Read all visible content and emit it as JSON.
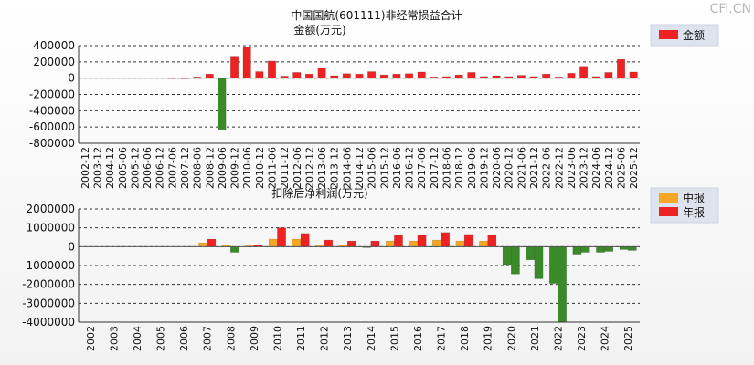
{
  "watermark": "CFi.CN",
  "chart_data": [
    {
      "type": "bar",
      "title": "中国国航(601111)非经常损益合计",
      "subtitle": "金额(万元)",
      "ylabel": "",
      "xlabel": "",
      "ylim": [
        -800000,
        400000
      ],
      "yticks": [
        "400000",
        "200000",
        "0",
        "-200000",
        "-400000",
        "-600000",
        "-800000"
      ],
      "grid": true,
      "legend_position": "top-right",
      "categories": [
        "2002-12",
        "2003-12",
        "2004-12",
        "2005-06",
        "2005-12",
        "2006-06",
        "2006-12",
        "2007-06",
        "2007-12",
        "2008-06",
        "2008-12",
        "2009-06",
        "2009-12",
        "2010-06",
        "2010-12",
        "2011-06",
        "2011-12",
        "2012-06",
        "2012-12",
        "2013-06",
        "2013-12",
        "2014-06",
        "2014-12",
        "2015-06",
        "2015-12",
        "2016-06",
        "2016-12",
        "2017-06",
        "2017-12",
        "2018-06",
        "2018-12",
        "2019-06",
        "2019-12",
        "2020-06",
        "2020-12",
        "2021-06",
        "2021-12",
        "2022-06",
        "2022-12",
        "2023-06",
        "2023-12",
        "2024-06",
        "2024-12",
        "2025-06",
        "2025-12"
      ],
      "series": [
        {
          "name": "金额",
          "color": "#ee2222",
          "negative_color": "#3a8a2a",
          "values": [
            0,
            0,
            0,
            0,
            0,
            0,
            0,
            5000,
            3000,
            15000,
            50000,
            -630000,
            270000,
            380000,
            80000,
            210000,
            25000,
            70000,
            50000,
            130000,
            30000,
            55000,
            50000,
            80000,
            40000,
            50000,
            55000,
            75000,
            15000,
            20000,
            40000,
            70000,
            20000,
            30000,
            20000,
            35000,
            20000,
            50000,
            15000,
            60000,
            145000,
            20000,
            70000,
            230000,
            75000
          ]
        }
      ]
    },
    {
      "type": "bar",
      "title": "扣除后净利润(万元)",
      "subtitle": "",
      "ylabel": "",
      "xlabel": "",
      "ylim": [
        -4000000,
        2000000
      ],
      "yticks": [
        "2000000",
        "1000000",
        "0",
        "-1000000",
        "-2000000",
        "-3000000",
        "-4000000"
      ],
      "grid": true,
      "legend_position": "top-right",
      "categories": [
        "2002",
        "2003",
        "2004",
        "2005",
        "2006",
        "2007",
        "2008",
        "2009",
        "2010",
        "2011",
        "2012",
        "2013",
        "2014",
        "2015",
        "2016",
        "2017",
        "2018",
        "2019",
        "2020",
        "2021",
        "2022",
        "2023",
        "2024",
        "2025"
      ],
      "series": [
        {
          "name": "中报",
          "color": "#f5a623",
          "negative_color": "#3a8a2a",
          "values": [
            0,
            0,
            0,
            0,
            0,
            200000,
            100000,
            50000,
            400000,
            400000,
            100000,
            100000,
            -50000,
            300000,
            300000,
            350000,
            300000,
            300000,
            -950000,
            -700000,
            -1950000,
            -400000,
            -300000,
            -150000
          ]
        },
        {
          "name": "年报",
          "color": "#ee2222",
          "negative_color": "#3a8a2a",
          "values": [
            0,
            0,
            0,
            0,
            0,
            400000,
            -300000,
            100000,
            1000000,
            700000,
            350000,
            300000,
            300000,
            600000,
            600000,
            750000,
            650000,
            600000,
            -1450000,
            -1700000,
            -4000000,
            -300000,
            -250000,
            -200000
          ]
        }
      ]
    }
  ]
}
